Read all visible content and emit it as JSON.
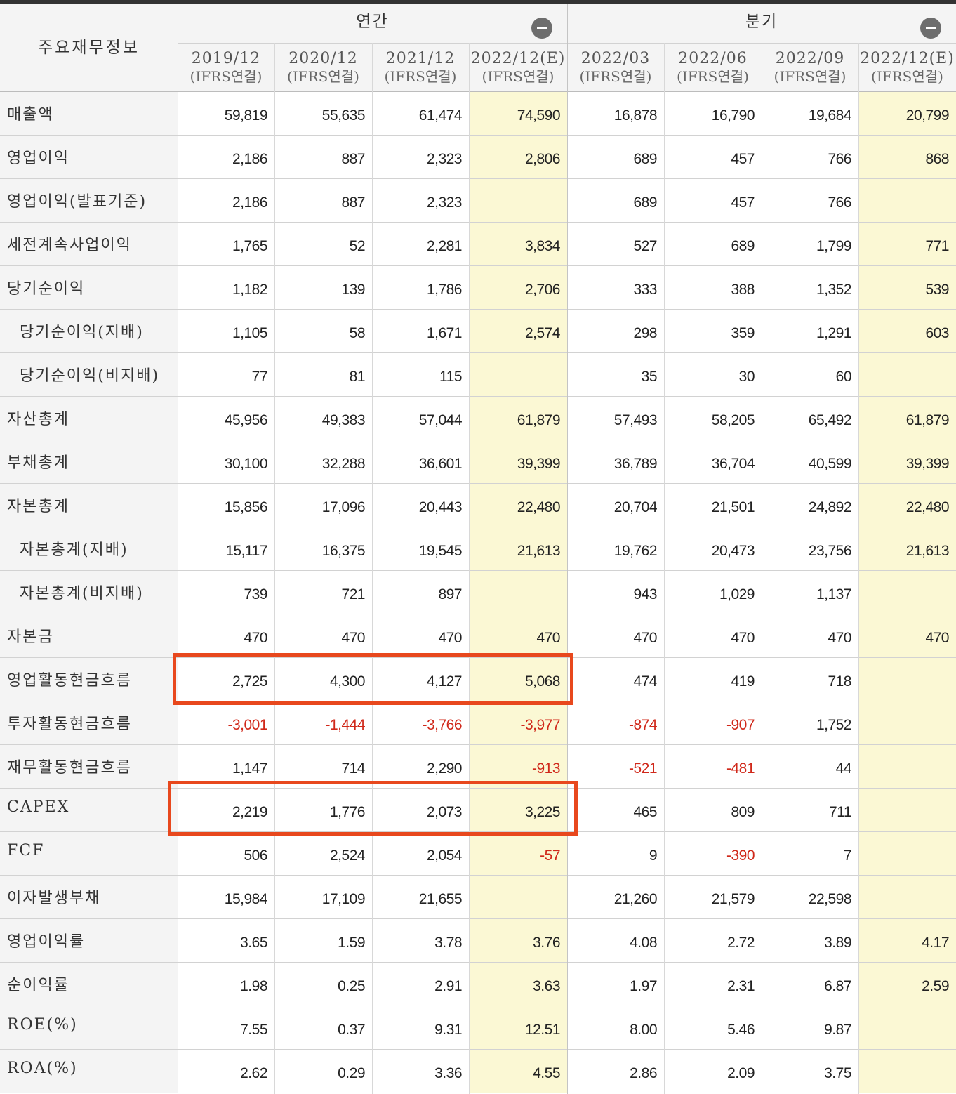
{
  "table": {
    "corner_label": "주요재무정보",
    "groups": [
      {
        "label": "연간",
        "toggle_icon": "minus-circle-icon"
      },
      {
        "label": "분기",
        "toggle_icon": "minus-circle-icon"
      }
    ],
    "columns": [
      {
        "date": "2019/12",
        "sub": "(IFRS연결)"
      },
      {
        "date": "2020/12",
        "sub": "(IFRS연결)"
      },
      {
        "date": "2021/12",
        "sub": "(IFRS연결)"
      },
      {
        "date": "2022/12(E)",
        "sub": "(IFRS연결)"
      },
      {
        "date": "2022/03",
        "sub": "(IFRS연결)"
      },
      {
        "date": "2022/06",
        "sub": "(IFRS연결)"
      },
      {
        "date": "2022/09",
        "sub": "(IFRS연결)"
      },
      {
        "date": "2022/12(E)",
        "sub": "(IFRS연결)"
      }
    ],
    "rows": [
      {
        "label": "매출액",
        "sub": false,
        "values": [
          "59,819",
          "55,635",
          "61,474",
          "74,590",
          "16,878",
          "16,790",
          "19,684",
          "20,799"
        ]
      },
      {
        "label": "영업이익",
        "sub": false,
        "values": [
          "2,186",
          "887",
          "2,323",
          "2,806",
          "689",
          "457",
          "766",
          "868"
        ]
      },
      {
        "label": "영업이익(발표기준)",
        "sub": false,
        "values": [
          "2,186",
          "887",
          "2,323",
          "",
          "689",
          "457",
          "766",
          ""
        ]
      },
      {
        "label": "세전계속사업이익",
        "sub": false,
        "values": [
          "1,765",
          "52",
          "2,281",
          "3,834",
          "527",
          "689",
          "1,799",
          "771"
        ]
      },
      {
        "label": "당기순이익",
        "sub": false,
        "values": [
          "1,182",
          "139",
          "1,786",
          "2,706",
          "333",
          "388",
          "1,352",
          "539"
        ]
      },
      {
        "label": "당기순이익(지배)",
        "sub": true,
        "values": [
          "1,105",
          "58",
          "1,671",
          "2,574",
          "298",
          "359",
          "1,291",
          "603"
        ]
      },
      {
        "label": "당기순이익(비지배)",
        "sub": true,
        "values": [
          "77",
          "81",
          "115",
          "",
          "35",
          "30",
          "60",
          ""
        ]
      },
      {
        "label": "자산총계",
        "sub": false,
        "values": [
          "45,956",
          "49,383",
          "57,044",
          "61,879",
          "57,493",
          "58,205",
          "65,492",
          "61,879"
        ]
      },
      {
        "label": "부채총계",
        "sub": false,
        "values": [
          "30,100",
          "32,288",
          "36,601",
          "39,399",
          "36,789",
          "36,704",
          "40,599",
          "39,399"
        ]
      },
      {
        "label": "자본총계",
        "sub": false,
        "values": [
          "15,856",
          "17,096",
          "20,443",
          "22,480",
          "20,704",
          "21,501",
          "24,892",
          "22,480"
        ]
      },
      {
        "label": "자본총계(지배)",
        "sub": true,
        "values": [
          "15,117",
          "16,375",
          "19,545",
          "21,613",
          "19,762",
          "20,473",
          "23,756",
          "21,613"
        ]
      },
      {
        "label": "자본총계(비지배)",
        "sub": true,
        "values": [
          "739",
          "721",
          "897",
          "",
          "943",
          "1,029",
          "1,137",
          ""
        ]
      },
      {
        "label": "자본금",
        "sub": false,
        "values": [
          "470",
          "470",
          "470",
          "470",
          "470",
          "470",
          "470",
          "470"
        ]
      },
      {
        "label": "영업활동현금흐름",
        "sub": false,
        "values": [
          "2,725",
          "4,300",
          "4,127",
          "5,068",
          "474",
          "419",
          "718",
          ""
        ]
      },
      {
        "label": "투자활동현금흐름",
        "sub": false,
        "values": [
          "-3,001",
          "-1,444",
          "-3,766",
          "-3,977",
          "-874",
          "-907",
          "1,752",
          ""
        ]
      },
      {
        "label": "재무활동현금흐름",
        "sub": false,
        "values": [
          "1,147",
          "714",
          "2,290",
          "-913",
          "-521",
          "-481",
          "44",
          ""
        ]
      },
      {
        "label": "CAPEX",
        "sub": false,
        "values": [
          "2,219",
          "1,776",
          "2,073",
          "3,225",
          "465",
          "809",
          "711",
          ""
        ]
      },
      {
        "label": "FCF",
        "sub": false,
        "values": [
          "506",
          "2,524",
          "2,054",
          "-57",
          "9",
          "-390",
          "7",
          ""
        ]
      },
      {
        "label": "이자발생부채",
        "sub": false,
        "values": [
          "15,984",
          "17,109",
          "21,655",
          "",
          "21,260",
          "21,579",
          "22,598",
          ""
        ]
      },
      {
        "label": "영업이익률",
        "sub": false,
        "values": [
          "3.65",
          "1.59",
          "3.78",
          "3.76",
          "4.08",
          "2.72",
          "3.89",
          "4.17"
        ]
      },
      {
        "label": "순이익률",
        "sub": false,
        "values": [
          "1.98",
          "0.25",
          "2.91",
          "3.63",
          "1.97",
          "2.31",
          "6.87",
          "2.59"
        ]
      },
      {
        "label": "ROE(%)",
        "sub": false,
        "values": [
          "7.55",
          "0.37",
          "9.31",
          "12.51",
          "8.00",
          "5.46",
          "9.87",
          ""
        ]
      },
      {
        "label": "ROA(%)",
        "sub": false,
        "values": [
          "2.62",
          "0.29",
          "3.36",
          "4.55",
          "2.86",
          "2.09",
          "3.75",
          ""
        ]
      }
    ]
  },
  "colors": {
    "negative_text": "#d0281a",
    "estimate_bg": "#fbf8d4",
    "highlight_border": "#e8481d",
    "header_bg": "#f4f4f4"
  },
  "highlights": [
    {
      "row": "영업활동현금흐름",
      "columns": [
        "2019/12",
        "2020/12",
        "2021/12",
        "2022/12(E)"
      ]
    },
    {
      "row": "CAPEX",
      "columns": [
        "2019/12",
        "2020/12",
        "2021/12",
        "2022/12(E)"
      ]
    }
  ]
}
